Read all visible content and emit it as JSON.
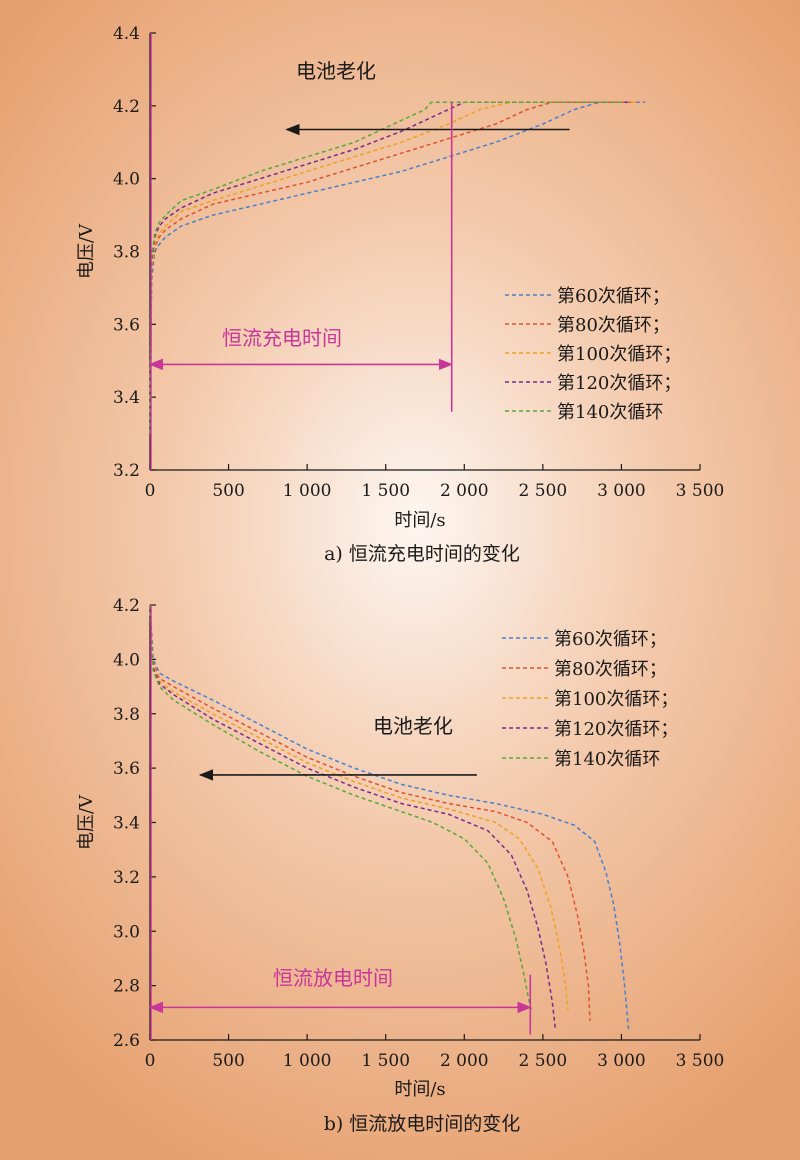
{
  "chart_data": [
    {
      "type": "line",
      "caption": "a) 恒流充电时间的变化",
      "xlabel": "时间/s",
      "ylabel": "电压/V",
      "xlim": [
        0,
        3500
      ],
      "ylim": [
        3.2,
        4.4
      ],
      "xticks": [
        0,
        500,
        1000,
        1500,
        2000,
        2500,
        3000,
        3500
      ],
      "xtick_labels": [
        "0",
        "500",
        "1 000",
        "1 500",
        "2 000",
        "2 500",
        "3 000",
        "3 500"
      ],
      "yticks": [
        3.2,
        3.4,
        3.6,
        3.8,
        4.0,
        4.2,
        4.4
      ],
      "ytick_labels": [
        "3.2",
        "3.4",
        "3.6",
        "3.8",
        "4.0",
        "4.2",
        "4.4"
      ],
      "legend_position": "right-middle",
      "annotations": {
        "aging_label": "电池老化",
        "aging_arrow": {
          "from": [
            2670,
            4.135
          ],
          "to": [
            870,
            4.135
          ]
        },
        "duration_label": "恒流充电时间",
        "duration_arrow": {
          "from": [
            0,
            3.49
          ],
          "to": [
            1920,
            3.49
          ]
        },
        "marker_line": {
          "x": 1920,
          "y_range": [
            3.36,
            4.21
          ]
        }
      },
      "series": [
        {
          "name": "第60次循环；",
          "color": "#4a7fd0",
          "x": [
            0,
            10,
            30,
            60,
            100,
            200,
            400,
            700,
            1000,
            1300,
            1600,
            1900,
            2200,
            2500,
            2700,
            2860,
            3000,
            3150
          ],
          "y": [
            3.3,
            3.72,
            3.8,
            3.82,
            3.84,
            3.87,
            3.9,
            3.93,
            3.96,
            3.99,
            4.02,
            4.06,
            4.1,
            4.15,
            4.19,
            4.21,
            4.21,
            4.21
          ]
        },
        {
          "name": "第80次循环；",
          "color": "#e0522c",
          "x": [
            0,
            10,
            30,
            60,
            100,
            200,
            400,
            700,
            1000,
            1300,
            1600,
            1900,
            2200,
            2400,
            2560,
            2800,
            3100
          ],
          "y": [
            3.3,
            3.74,
            3.81,
            3.84,
            3.86,
            3.89,
            3.93,
            3.96,
            3.99,
            4.03,
            4.07,
            4.11,
            4.15,
            4.19,
            4.21,
            4.21,
            4.21
          ]
        },
        {
          "name": "第100次循环；",
          "color": "#f0a020",
          "x": [
            0,
            10,
            30,
            60,
            100,
            200,
            400,
            700,
            1000,
            1300,
            1600,
            1900,
            2100,
            2300,
            2600,
            3100
          ],
          "y": [
            3.3,
            3.75,
            3.82,
            3.85,
            3.87,
            3.91,
            3.94,
            3.98,
            4.02,
            4.06,
            4.1,
            4.15,
            4.19,
            4.21,
            4.21,
            4.21
          ]
        },
        {
          "name": "第120次循环；",
          "color": "#7a2a8a",
          "x": [
            0,
            10,
            30,
            60,
            100,
            200,
            400,
            700,
            1000,
            1300,
            1600,
            1850,
            2000,
            2400,
            3050
          ],
          "y": [
            3.3,
            3.77,
            3.84,
            3.87,
            3.89,
            3.92,
            3.96,
            4.0,
            4.04,
            4.08,
            4.13,
            4.18,
            4.21,
            4.21,
            4.21
          ]
        },
        {
          "name": "第140次循环",
          "color": "#58a83a",
          "x": [
            0,
            10,
            30,
            60,
            100,
            200,
            400,
            700,
            1000,
            1300,
            1550,
            1750,
            1790,
            2300,
            3000
          ],
          "y": [
            3.3,
            3.78,
            3.85,
            3.88,
            3.9,
            3.94,
            3.97,
            4.02,
            4.06,
            4.1,
            4.15,
            4.19,
            4.21,
            4.21,
            4.21
          ]
        }
      ]
    },
    {
      "type": "line",
      "caption": "b) 恒流放电时间的变化",
      "xlabel": "时间/s",
      "ylabel": "电压/V",
      "xlim": [
        0,
        3500
      ],
      "ylim": [
        2.6,
        4.2
      ],
      "xticks": [
        0,
        500,
        1000,
        1500,
        2000,
        2500,
        3000,
        3500
      ],
      "xtick_labels": [
        "0",
        "500",
        "1 000",
        "1 500",
        "2 000",
        "2 500",
        "3 000",
        "3 500"
      ],
      "yticks": [
        2.6,
        2.8,
        3.0,
        3.2,
        3.4,
        3.6,
        3.8,
        4.0,
        4.2
      ],
      "ytick_labels": [
        "2.6",
        "2.8",
        "3.0",
        "3.2",
        "3.4",
        "3.6",
        "3.8",
        "4.0",
        "4.2"
      ],
      "legend_position": "top-right",
      "annotations": {
        "aging_label": "电池老化",
        "aging_arrow": {
          "from": [
            2080,
            3.575
          ],
          "to": [
            320,
            3.575
          ]
        },
        "duration_label": "恒流放电时间",
        "duration_arrow": {
          "from": [
            0,
            2.72
          ],
          "to": [
            2420,
            2.72
          ]
        },
        "marker_line": {
          "x": 2420,
          "y_range": [
            2.62,
            2.84
          ]
        }
      },
      "series": [
        {
          "name": "第60次循环；",
          "color": "#4a7fd0",
          "x": [
            0,
            20,
            60,
            150,
            400,
            700,
            1000,
            1300,
            1600,
            1900,
            2200,
            2500,
            2700,
            2830,
            2900,
            2950,
            2990,
            3020,
            3045
          ],
          "y": [
            4.2,
            4.0,
            3.95,
            3.92,
            3.85,
            3.76,
            3.67,
            3.6,
            3.54,
            3.5,
            3.47,
            3.43,
            3.39,
            3.33,
            3.22,
            3.1,
            2.95,
            2.8,
            2.64
          ]
        },
        {
          "name": "第80次循环；",
          "color": "#e0522c",
          "x": [
            0,
            20,
            60,
            150,
            400,
            700,
            1000,
            1300,
            1600,
            1900,
            2200,
            2400,
            2560,
            2660,
            2720,
            2760,
            2790,
            2800
          ],
          "y": [
            4.2,
            3.99,
            3.93,
            3.9,
            3.82,
            3.73,
            3.64,
            3.57,
            3.51,
            3.47,
            3.44,
            3.4,
            3.33,
            3.2,
            3.06,
            2.93,
            2.8,
            2.67
          ]
        },
        {
          "name": "第100次循环；",
          "color": "#f0a020",
          "x": [
            0,
            20,
            60,
            150,
            400,
            700,
            1000,
            1300,
            1600,
            1900,
            2200,
            2350,
            2470,
            2550,
            2600,
            2640,
            2660
          ],
          "y": [
            4.2,
            3.98,
            3.92,
            3.88,
            3.8,
            3.71,
            3.62,
            3.55,
            3.49,
            3.45,
            3.4,
            3.34,
            3.23,
            3.09,
            2.96,
            2.82,
            2.71
          ]
        },
        {
          "name": "第120次循环；",
          "color": "#7a2a8a",
          "x": [
            0,
            20,
            60,
            150,
            400,
            700,
            1000,
            1300,
            1600,
            1900,
            2150,
            2300,
            2400,
            2470,
            2520,
            2560,
            2580
          ],
          "y": [
            4.2,
            3.97,
            3.91,
            3.87,
            3.78,
            3.69,
            3.6,
            3.53,
            3.47,
            3.43,
            3.37,
            3.28,
            3.15,
            3.01,
            2.88,
            2.74,
            2.64
          ]
        },
        {
          "name": "第140次循环",
          "color": "#58a83a",
          "x": [
            0,
            20,
            60,
            150,
            400,
            700,
            1000,
            1300,
            1600,
            1800,
            2000,
            2150,
            2250,
            2330,
            2380,
            2410,
            2430
          ],
          "y": [
            4.2,
            3.96,
            3.9,
            3.85,
            3.76,
            3.66,
            3.57,
            3.5,
            3.44,
            3.4,
            3.34,
            3.25,
            3.12,
            2.97,
            2.84,
            2.75,
            2.7
          ]
        }
      ]
    }
  ]
}
